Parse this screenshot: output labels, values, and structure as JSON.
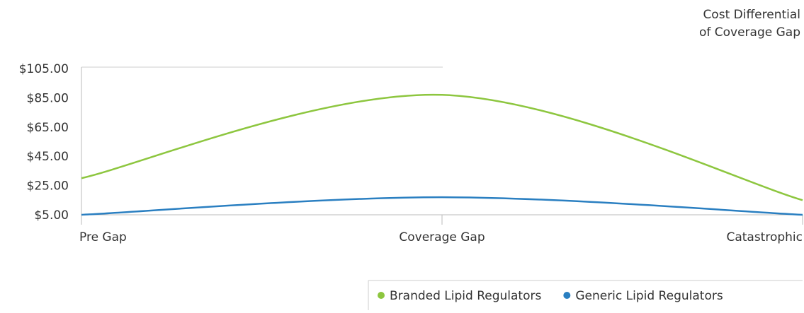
{
  "chart_data": {
    "type": "line",
    "title": [
      "Cost Differential",
      "of Coverage Gap"
    ],
    "categories": [
      "Pre Gap",
      "Coverage Gap",
      "Catastrophic"
    ],
    "series": [
      {
        "name": "Branded Lipid Regulators",
        "color": "#8dc63f",
        "values": [
          30,
          87,
          15
        ]
      },
      {
        "name": "Generic Lipid Regulators",
        "color": "#2a7fc1",
        "values": [
          5,
          17,
          5
        ]
      }
    ],
    "ylim": [
      5,
      105
    ],
    "yticks": [
      {
        "value": 5,
        "label": "$5.00"
      },
      {
        "value": 25,
        "label": "$25.00"
      },
      {
        "value": 45,
        "label": "$45.00"
      },
      {
        "value": 65,
        "label": "$65.00"
      },
      {
        "value": 85,
        "label": "$85.00"
      },
      {
        "value": 105,
        "label": "$105.00"
      }
    ],
    "legend": "bottom-right"
  }
}
